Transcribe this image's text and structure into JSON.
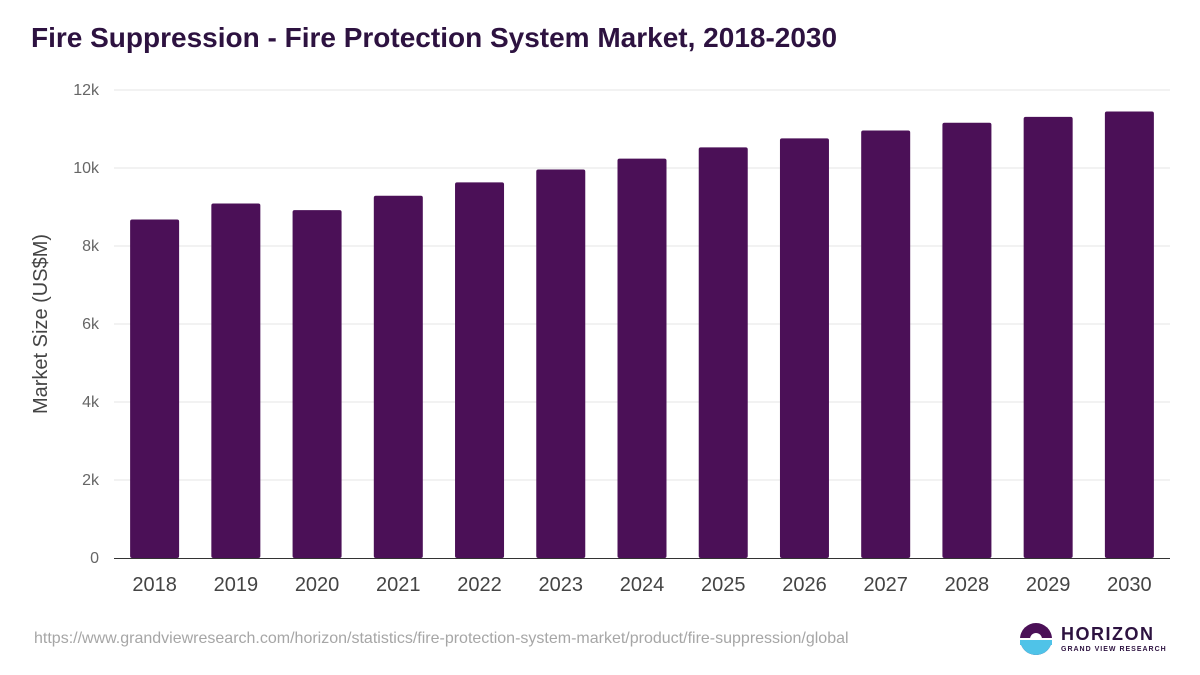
{
  "chart_data": {
    "type": "bar",
    "title": "Fire Suppression - Fire Protection System Market, 2018-2030",
    "ylabel": "Market Size (US$M)",
    "xlabel": "",
    "categories": [
      "2018",
      "2019",
      "2020",
      "2021",
      "2022",
      "2023",
      "2024",
      "2025",
      "2026",
      "2027",
      "2028",
      "2029",
      "2030"
    ],
    "values": [
      8680,
      9090,
      8920,
      9290,
      9630,
      9960,
      10240,
      10530,
      10760,
      10960,
      11160,
      11310,
      11450
    ],
    "ylim": [
      0,
      12000
    ],
    "yticks": [
      0,
      2000,
      4000,
      6000,
      8000,
      10000,
      12000
    ],
    "ytick_labels": [
      "0",
      "2k",
      "4k",
      "6k",
      "8k",
      "10k",
      "12k"
    ],
    "grid": true,
    "legend": "none",
    "bar_color": "#4b1057"
  },
  "footer": {
    "url": "https://www.grandviewresearch.com/horizon/statistics/fire-protection-system-market/product/fire-suppression/global"
  },
  "logo": {
    "name": "HORIZON",
    "subtitle": "GRAND VIEW RESEARCH"
  }
}
